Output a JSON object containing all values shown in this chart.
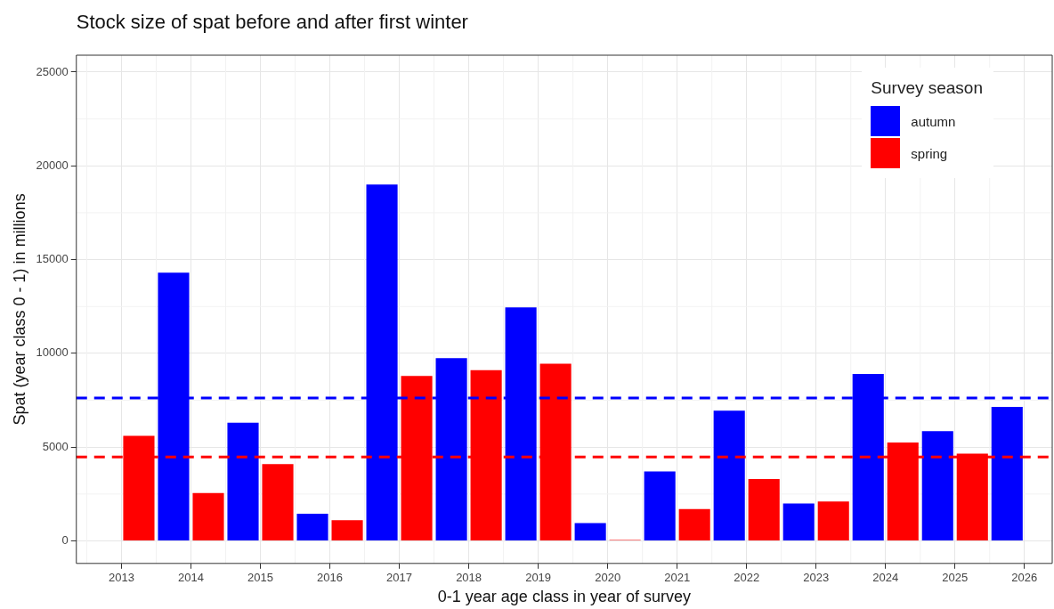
{
  "chart_data": {
    "type": "bar",
    "title": "Stock size of spat before and after first winter",
    "xlabel": "0-1 year age class in year of survey",
    "ylabel": "Spat (year class 0 - 1) in millions",
    "legend_title": "Survey season",
    "series": [
      {
        "name": "autumn",
        "color": "#0000ff",
        "x": [
          2013.75,
          2014.75,
          2015.75,
          2016.75,
          2017.75,
          2018.75,
          2019.75,
          2020.75,
          2021.75,
          2022.75,
          2023.75,
          2024.75,
          2025.75
        ],
        "values": [
          14300,
          6300,
          1450,
          19000,
          9750,
          12450,
          950,
          3700,
          6950,
          2000,
          8900,
          5850,
          7150
        ]
      },
      {
        "name": "spring",
        "color": "#ff0000",
        "x": [
          2013.25,
          2014.25,
          2015.25,
          2016.25,
          2017.25,
          2018.25,
          2019.25,
          2020.25,
          2021.25,
          2022.25,
          2023.25,
          2024.25,
          2025.25
        ],
        "values": [
          5600,
          2550,
          4100,
          1100,
          8800,
          9100,
          9450,
          50,
          1700,
          3300,
          2100,
          5250,
          4650
        ]
      }
    ],
    "xlim": [
      2012.35,
      2026.4
    ],
    "xticks": [
      2013,
      2014,
      2015,
      2016,
      2017,
      2018,
      2019,
      2020,
      2021,
      2022,
      2023,
      2024,
      2025,
      2026
    ],
    "ylim": [
      -1200,
      25900
    ],
    "yticks": [
      0,
      5000,
      10000,
      15000,
      20000,
      25000
    ],
    "ref_lines": [
      {
        "axis": "y",
        "value": 7620,
        "color": "#0000ff",
        "line_style": "dashed"
      },
      {
        "axis": "y",
        "value": 4480,
        "color": "#ff0000",
        "line_style": "dashed"
      }
    ],
    "grid": true,
    "legend": "top right"
  }
}
